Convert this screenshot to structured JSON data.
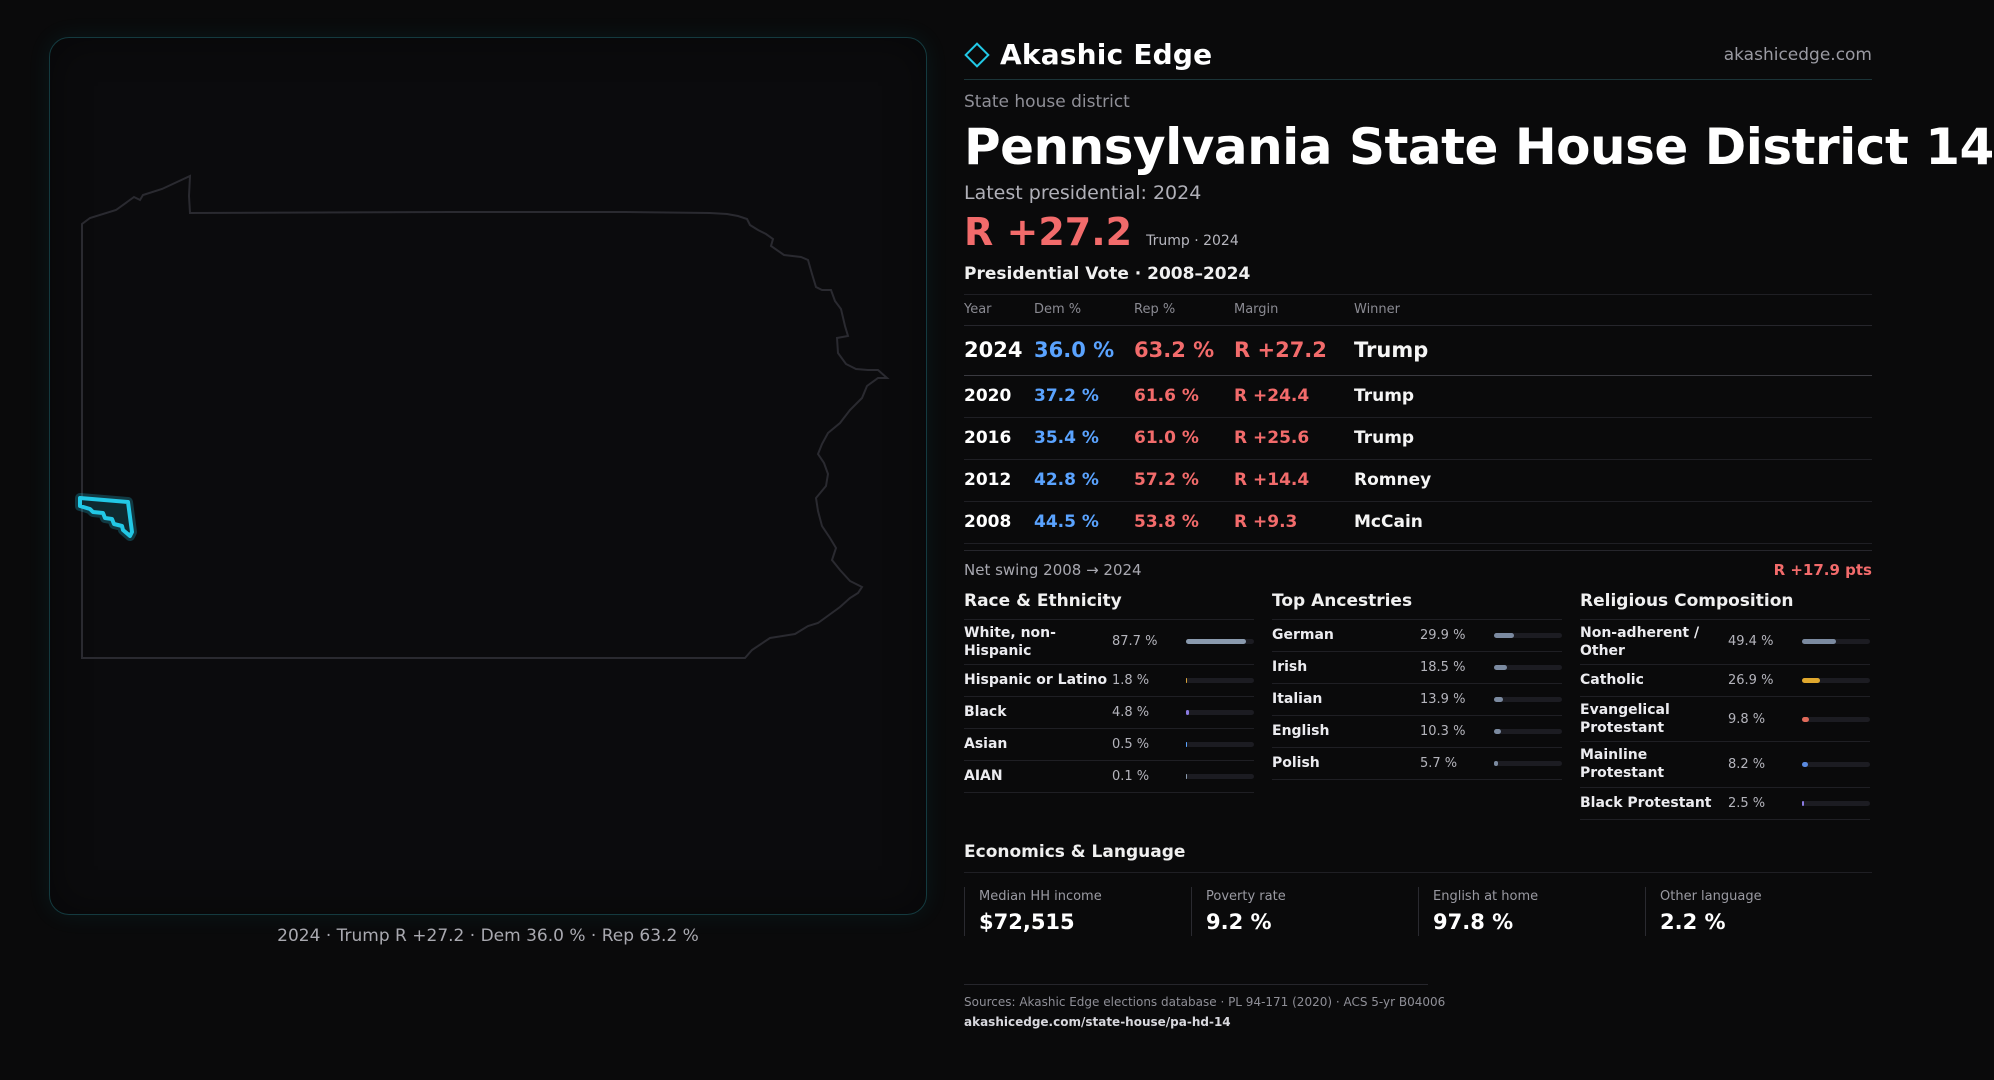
{
  "map": {
    "caption": "2024 · Trump R +27.2 · Dem 36.0 % · Rep 63.2 %"
  },
  "header": {
    "brand": "Akashic Edge",
    "site": "akashicedge.com"
  },
  "district": {
    "kicker": "State house district",
    "title": "Pennsylvania State House District 14",
    "latest_label": "Latest presidential: 2024",
    "margin": "R +27.2",
    "margin_sub": "Trump · 2024"
  },
  "presidential": {
    "title": "Presidential Vote · 2008–2024",
    "headers": [
      "Year",
      "Dem %",
      "Rep %",
      "Margin",
      "Winner"
    ],
    "rows": [
      {
        "year": "2024",
        "dem": "36.0 %",
        "rep": "63.2 %",
        "margin": "R +27.2",
        "winner": "Trump"
      },
      {
        "year": "2020",
        "dem": "37.2 %",
        "rep": "61.6 %",
        "margin": "R +24.4",
        "winner": "Trump"
      },
      {
        "year": "2016",
        "dem": "35.4 %",
        "rep": "61.0 %",
        "margin": "R +25.6",
        "winner": "Trump"
      },
      {
        "year": "2012",
        "dem": "42.8 %",
        "rep": "57.2 %",
        "margin": "R +14.4",
        "winner": "Romney"
      },
      {
        "year": "2008",
        "dem": "44.5 %",
        "rep": "53.8 %",
        "margin": "R +9.3",
        "winner": "McCain"
      }
    ],
    "swing_label": "Net swing 2008 → 2024",
    "swing_value": "R +17.9 pts"
  },
  "race": {
    "title": "Race & Ethnicity",
    "items": [
      {
        "label": "White, non-Hispanic",
        "value": "87.7 %",
        "pct": 87.7,
        "color": "#8a9aae"
      },
      {
        "label": "Hispanic or Latino",
        "value": "1.8 %",
        "pct": 1.8,
        "color": "#d8a23a"
      },
      {
        "label": "Black",
        "value": "4.8 %",
        "pct": 4.8,
        "color": "#8a7ae0"
      },
      {
        "label": "Asian",
        "value": "0.5 %",
        "pct": 0.5,
        "color": "#5aa3ff"
      },
      {
        "label": "AIAN",
        "value": "0.1 %",
        "pct": 0.1,
        "color": "#8a9aae"
      }
    ]
  },
  "ancestry": {
    "title": "Top Ancestries",
    "items": [
      {
        "label": "German",
        "value": "29.9 %",
        "pct": 29.9,
        "color": "#7b8aa0"
      },
      {
        "label": "Irish",
        "value": "18.5 %",
        "pct": 18.5,
        "color": "#7b8aa0"
      },
      {
        "label": "Italian",
        "value": "13.9 %",
        "pct": 13.9,
        "color": "#7b8aa0"
      },
      {
        "label": "English",
        "value": "10.3 %",
        "pct": 10.3,
        "color": "#7b8aa0"
      },
      {
        "label": "Polish",
        "value": "5.7 %",
        "pct": 5.7,
        "color": "#7b8aa0"
      }
    ]
  },
  "religion": {
    "title": "Religious Composition",
    "items": [
      {
        "label": "Non-adherent / Other",
        "value": "49.4 %",
        "pct": 49.4,
        "color": "#7b8aa0"
      },
      {
        "label": "Catholic",
        "value": "26.9 %",
        "pct": 26.9,
        "color": "#e0a82e"
      },
      {
        "label": "Evangelical Protestant",
        "value": "9.8 %",
        "pct": 9.8,
        "color": "#e06a5a"
      },
      {
        "label": "Mainline Protestant",
        "value": "8.2 %",
        "pct": 8.2,
        "color": "#5a8ae0"
      },
      {
        "label": "Black Protestant",
        "value": "2.5 %",
        "pct": 2.5,
        "color": "#8a7ae0"
      }
    ]
  },
  "economics": {
    "title": "Economics & Language",
    "cells": [
      {
        "label": "Median HH income",
        "value": "$72,515"
      },
      {
        "label": "Poverty rate",
        "value": "9.2 %"
      },
      {
        "label": "English at home",
        "value": "97.8 %"
      },
      {
        "label": "Other language",
        "value": "2.2 %"
      }
    ]
  },
  "sources": {
    "line1": "Sources: Akashic Edge elections database · PL 94-171 (2020) · ACS 5-yr B04006",
    "line2": "akashicedge.com/state-house/pa-hd-14"
  },
  "colors": {
    "dem": "#5aa3ff",
    "rep": "#f26b6b",
    "accent": "#22c8e6"
  }
}
